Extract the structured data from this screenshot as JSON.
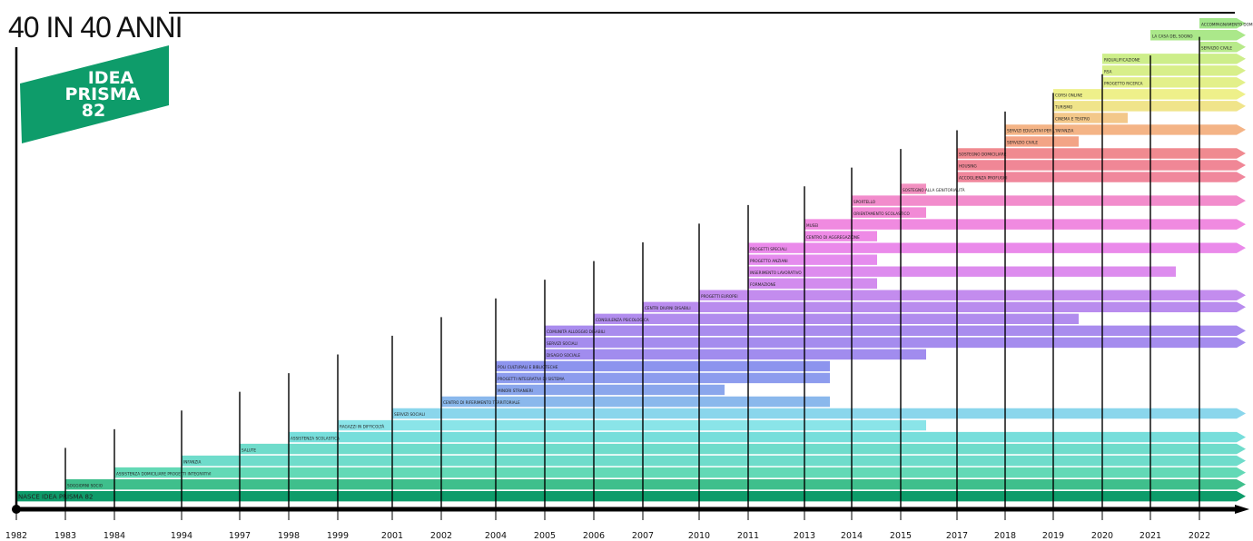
{
  "title": "40 IN 40 ANNI",
  "logo": {
    "line1": "IDEA",
    "line2": "PRISMA",
    "line3": "82",
    "color": "#0e9c6a"
  },
  "years": [
    "1982",
    "1983",
    "1984",
    "1994",
    "1997",
    "1998",
    "1999",
    "2001",
    "2002",
    "2004",
    "2005",
    "2006",
    "2007",
    "2010",
    "2011",
    "2013",
    "2014",
    "2015",
    "2017",
    "2018",
    "2019",
    "2020",
    "2021",
    "2022"
  ],
  "activities": [
    {
      "label": "NASCE IDEA PRISMA 82",
      "start": "1982",
      "end": "",
      "color": "#0e9c6a"
    },
    {
      "label": "SOGGIORNI SOCIO",
      "start": "1983",
      "end": "",
      "color": "#3fbf8c"
    },
    {
      "label": "ASSISTENZA DOMICILIARE PROGETTI INTEGRATIVI",
      "start": "1984",
      "end": "",
      "color": "#63d9b6"
    },
    {
      "label": "INFANZIA",
      "start": "1994",
      "end": "",
      "color": "#6fdccb"
    },
    {
      "label": "SALUTE",
      "start": "1997",
      "end": "",
      "color": "#6fdccb"
    },
    {
      "label": "ASSISTENZA SCOLASTICA",
      "start": "1998",
      "end": "",
      "color": "#77dedb"
    },
    {
      "label": "RAGAZZI IN DIFFICOLTÀ",
      "start": "1999",
      "end": "2015",
      "color": "#8ae4e8"
    },
    {
      "label": "SERVIZI SOCIALI",
      "start": "2001",
      "end": "",
      "color": "#8ad6ec"
    },
    {
      "label": "CENTRO DI RIFERIMENTO TERRITORIALE",
      "start": "2002",
      "end": "2013",
      "color": "#8ab8ec"
    },
    {
      "label": "MINORI STRANIERI",
      "start": "2004",
      "end": "2010",
      "color": "#8aa6ec"
    },
    {
      "label": "PROGETTI INTEGRATIVI DI SISTEMA",
      "start": "2004",
      "end": "2013",
      "color": "#8d9cee"
    },
    {
      "label": "POLI CULTURALI E BIBLIOTECHE",
      "start": "2004",
      "end": "2013",
      "color": "#8d94ee"
    },
    {
      "label": "DISAGIO SOCIALE",
      "start": "2005",
      "end": "2015",
      "color": "#a18cee"
    },
    {
      "label": "SERVIZI SOCIALI",
      "start": "2005",
      "end": "",
      "color": "#a58cee"
    },
    {
      "label": "COMUNITÀ ALLOGGIO DISABILI",
      "start": "2005",
      "end": "",
      "color": "#a98cee"
    },
    {
      "label": "CONSULENZA PSICOLOGICA",
      "start": "2006",
      "end": "2019",
      "color": "#b18cee"
    },
    {
      "label": "CENTRI DIURNI DISABILI",
      "start": "2007",
      "end": "",
      "color": "#b98cee"
    },
    {
      "label": "PROGETTI EUROPEI",
      "start": "2010",
      "end": "",
      "color": "#c38cee"
    },
    {
      "label": "FORMAZIONE",
      "start": "2011",
      "end": "2014",
      "color": "#d28cee"
    },
    {
      "label": "INSERIMENTO LAVORATIVO",
      "start": "2011",
      "end": "2021",
      "color": "#dd8cee"
    },
    {
      "label": "PROGETTO ANZIANI",
      "start": "2011",
      "end": "2014",
      "color": "#e58cee"
    },
    {
      "label": "PROGETTI SPECIALI",
      "start": "2011",
      "end": "",
      "color": "#ea8aea"
    },
    {
      "label": "CENTRO DI AGGREGAZIONE",
      "start": "2013",
      "end": "2014",
      "color": "#ee8ae6"
    },
    {
      "label": "MUSEI",
      "start": "2013",
      "end": "",
      "color": "#f08ae0"
    },
    {
      "label": "ORIENTAMENTO SCOLASTICO",
      "start": "2014",
      "end": "2015",
      "color": "#f28ad6"
    },
    {
      "label": "SPORTELLO",
      "start": "2014",
      "end": "",
      "color": "#f28ccc"
    },
    {
      "label": "SOSTEGNO ALLA GENITORIALITÀ",
      "start": "2015",
      "end": "2015",
      "color": "#f290c0"
    },
    {
      "label": "ACCOGLIENZA PROFUGHI",
      "start": "2017",
      "end": "",
      "color": "#f0879c"
    },
    {
      "label": "HOUSING",
      "start": "2017",
      "end": "",
      "color": "#f08796"
    },
    {
      "label": "SOSTEGNO DOMICILIARE",
      "start": "2017",
      "end": "",
      "color": "#f08a90"
    },
    {
      "label": "SERVIZIO CIVILE",
      "start": "2018",
      "end": "2019",
      "color": "#f3a486"
    },
    {
      "label": "SERVIZI EDUCATIVI PER L'INFANZIA",
      "start": "2018",
      "end": "",
      "color": "#f4b486"
    },
    {
      "label": "CINEMA E TEATRO",
      "start": "2019",
      "end": "2020",
      "color": "#f3c88a"
    },
    {
      "label": "TURISMO",
      "start": "2019",
      "end": "",
      "color": "#f0e48a"
    },
    {
      "label": "CORSI ONLINE",
      "start": "2019",
      "end": "",
      "color": "#eef08a"
    },
    {
      "label": "PROGETTO RICERCA",
      "start": "2020",
      "end": "",
      "color": "#e3f08a"
    },
    {
      "label": "RSA",
      "start": "2020",
      "end": "",
      "color": "#d8ef8a"
    },
    {
      "label": "RIQUALIFICAZIONE",
      "start": "2020",
      "end": "",
      "color": "#cdee8a"
    },
    {
      "label": "SERVIZIO CIVILE",
      "start": "2022",
      "end": "",
      "color": "#b8ea8a"
    },
    {
      "label": "LA CASA DEL SOGNO",
      "start": "2021",
      "end": "",
      "color": "#abe88a"
    },
    {
      "label": "ACCOMPAGNAMENTO DOMICILIARE",
      "start": "2022",
      "end": "",
      "color": "#a2e68a"
    }
  ],
  "colors": {
    "timeline": "#000000",
    "logo": "#0e9c6a"
  }
}
